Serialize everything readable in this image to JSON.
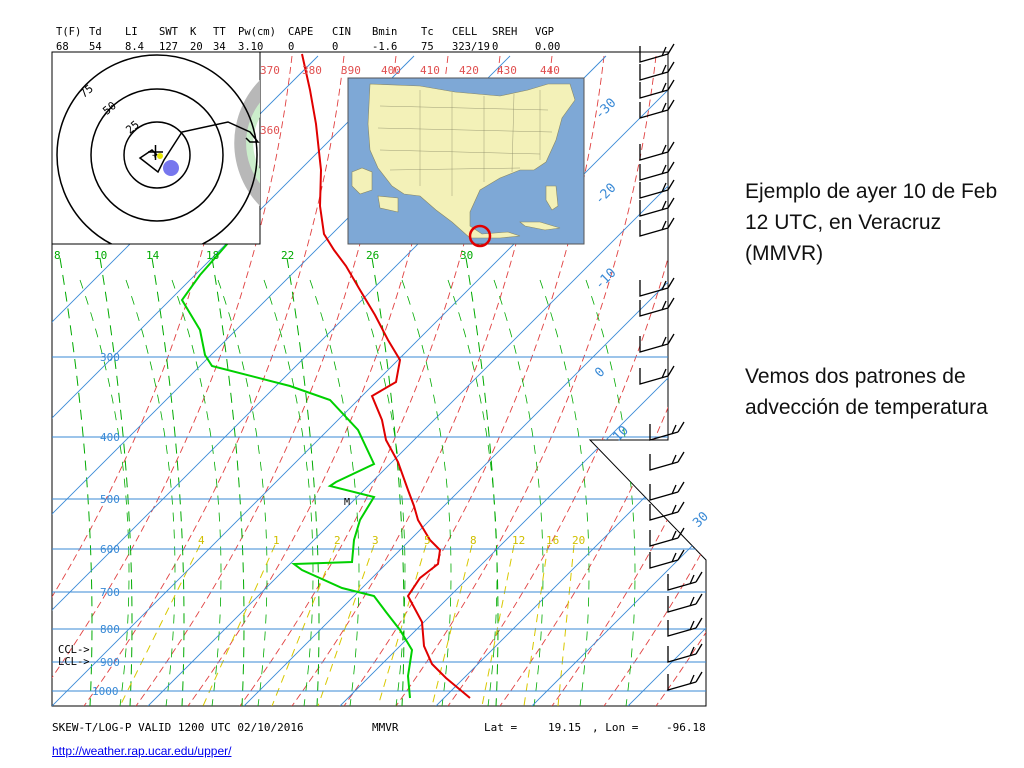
{
  "indices": {
    "headers": [
      "T(F)",
      "Td",
      "LI",
      "SWT",
      "K",
      "TT",
      "Pw(cm)",
      "CAPE",
      "CIN",
      "Bmin",
      "Tc",
      "CELL",
      "SREH",
      "VGP"
    ],
    "values": [
      "68",
      "54",
      "8.4",
      "127",
      "20",
      "34",
      "3.10",
      "0",
      "0",
      "-1.6",
      "75",
      "323/19",
      "0",
      "0.00"
    ]
  },
  "footer": {
    "title": "SKEW-T/LOG-P VALID 1200 UTC 02/10/2016",
    "station": "MMVR",
    "lat_label": "Lat =",
    "lat_value": "19.15",
    "lon_label": ", Lon =",
    "lon_value": "-96.18"
  },
  "ccl_label": "CCL->",
  "lcl_label": "LCL->",
  "source_url": "http://weather.rap.ucar.edu/upper/",
  "slide": {
    "para1": "Ejemplo de ayer 10 de Feb 12 UTC, en Veracruz (MMVR)",
    "para2": "Vemos dos patrones de advección de temperatura"
  },
  "hodograph": {
    "rings": [
      "75",
      "50",
      "25"
    ]
  },
  "chart_data": {
    "type": "skew-t log-p sounding",
    "pressure_levels": [
      300,
      400,
      500,
      600,
      700,
      800,
      900,
      1000
    ],
    "pressure_labels": [
      "300",
      "400",
      "500",
      "600",
      "700",
      "800",
      "900",
      "1000"
    ],
    "temperature_labels": [
      "-30",
      "-20",
      "-10",
      "0",
      "10",
      "30"
    ],
    "dry_adiabat_labels": [
      "370",
      "380",
      "390",
      "400",
      "410",
      "420",
      "430",
      "440",
      "360"
    ],
    "moist_adiabat_labels": [
      "8",
      "10",
      "14",
      "18",
      "22",
      "26",
      "30"
    ],
    "mixing_ratio_labels": [
      "4",
      "1",
      "2",
      "3",
      "5",
      "8",
      "12",
      "16",
      "20"
    ],
    "temperature_profile_color": "#e00000",
    "dewpoint_profile_color": "#00d000",
    "isobar_color": "#3a8ad6",
    "dry_adiabat_color": "#e04040",
    "moist_adiabat_color": "#00aa00",
    "mixing_ratio_color": "#d8c800",
    "map_highlight_circle_color": "#e00000",
    "storm_motion_marker_color": "#7777ee"
  }
}
